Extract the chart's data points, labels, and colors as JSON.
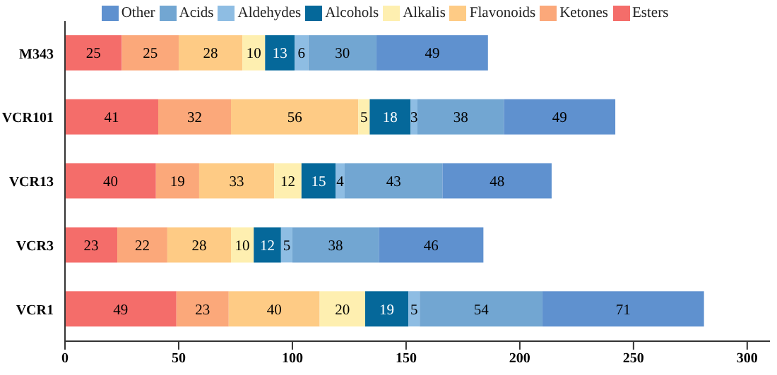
{
  "chart_data": {
    "type": "bar",
    "orientation": "horizontal",
    "stacked": true,
    "data_labels": true,
    "legend": "top",
    "categories": [
      "M343",
      "VCR101",
      "VCR13",
      "VCR3",
      "VCR1"
    ],
    "series": [
      {
        "name": "Esters",
        "color": "#f46d6a",
        "values": [
          25,
          41,
          40,
          23,
          49
        ]
      },
      {
        "name": "Ketones",
        "color": "#fba87a",
        "values": [
          25,
          32,
          19,
          22,
          23
        ]
      },
      {
        "name": "Flavonoids",
        "color": "#fecb85",
        "values": [
          28,
          56,
          33,
          28,
          40
        ]
      },
      {
        "name": "Alkalis",
        "color": "#feefb0",
        "values": [
          10,
          5,
          12,
          10,
          20
        ]
      },
      {
        "name": "Alcohols",
        "color": "#05689a",
        "values": [
          13,
          18,
          15,
          12,
          19
        ]
      },
      {
        "name": "Aldehydes",
        "color": "#8ebde3",
        "values": [
          6,
          3,
          4,
          5,
          5
        ]
      },
      {
        "name": "Acids",
        "color": "#72a6d2",
        "values": [
          30,
          38,
          43,
          38,
          54
        ]
      },
      {
        "name": "Other",
        "color": "#5f91cf",
        "values": [
          49,
          49,
          48,
          46,
          71
        ]
      }
    ],
    "xlim": [
      0,
      310
    ],
    "xticks": [
      0,
      50,
      100,
      150,
      200,
      250,
      300
    ]
  }
}
